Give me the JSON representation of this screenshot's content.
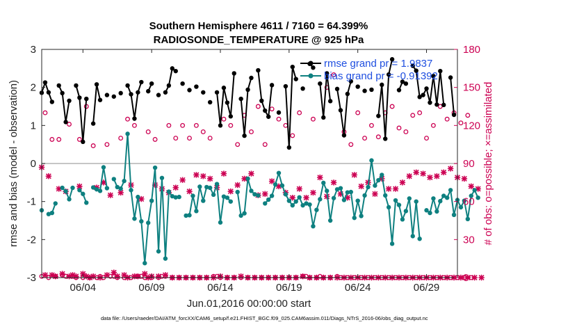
{
  "chart_data": {
    "type": "line",
    "title": "Southern Hemisphere 4611 / 7160 = 64.399%",
    "subtitle": "RADIOSONDE_TEMPERATURE @ 925 hPa",
    "xlabel": "Jun.01,2016 00:00:00 start",
    "ylabel": "rmse and bias (model - observation)",
    "ylabel_right": "# of obs: o=possible; ×=assimilated",
    "footnote": "data file: /Users/raeder/DAI/ATM_forcXX/CAM6_setup/f.e21.FHIST_BGC.f09_025.CAM6assim.011/Diags_NTrS_2016-06/obs_diag_output.nc",
    "xlim": [
      1.0,
      31.25
    ],
    "ylim": [
      -3,
      3
    ],
    "ylim_right": [
      0,
      180
    ],
    "x_ticks": [
      4,
      9,
      14,
      19,
      24,
      29
    ],
    "x_tick_labels": [
      "06/04",
      "06/09",
      "06/14",
      "06/19",
      "06/24",
      "06/29"
    ],
    "y_ticks": [
      -3,
      -2,
      -1,
      0,
      1,
      2,
      3
    ],
    "y_tick_labels": [
      "-3",
      "-2",
      "-1",
      "0",
      "1",
      "2",
      "3"
    ],
    "y_ticks_right": [
      0,
      30,
      60,
      90,
      120,
      150,
      180
    ],
    "y_tick_labels_right": [
      "0",
      "30",
      "60",
      "90",
      "120",
      "150",
      "180"
    ],
    "zero_line": 0,
    "legend": [
      "rmse grand pr = 1.9837",
      "bias grand pr = -0.91392"
    ],
    "colors": {
      "rmse": "#000000",
      "bias": "#0e8080",
      "obs": "#cc0052",
      "zero": "#b3b3b3",
      "legend_text": "#1f4fe0"
    },
    "series": [
      {
        "name": "rmse",
        "axis": "left",
        "start_day": 1.0,
        "step_days": 0.25,
        "values": [
          1.86,
          2.13,
          1.87,
          1.62,
          null,
          2.05,
          1.85,
          1.09,
          1.65,
          null,
          2.05,
          1.73,
          0.57,
          1.7,
          null,
          1.05,
          2.08,
          1.67,
          null,
          1.8,
          null,
          1.76,
          null,
          1.85,
          null,
          2.05,
          1.82,
          1.18,
          1.87,
          2.14,
          null,
          1.9,
          2.1,
          null,
          1.8,
          null,
          1.87,
          2.05,
          2.5,
          2.43,
          null,
          2.1,
          null,
          1.93,
          null,
          2.02,
          null,
          1.87,
          null,
          1.61,
          null,
          1.87,
          1.0,
          1.99,
          1.6,
          1.24,
          2.37,
          null,
          1.7,
          0.73,
          1.94,
          2.25,
          null,
          2.45,
          1.65,
          1.39,
          1.23,
          2.06,
          null,
          1.34,
          null,
          2.03,
          0.42,
          2.54,
          2.22,
          null,
          1.97,
          null,
          2.62,
          2.52,
          null,
          2.1,
          1.21,
          2.37,
          1.64,
          null,
          1.96,
          1.4,
          0.74,
          1.83,
          2.16,
          null,
          2.02,
          null,
          1.91,
          null,
          1.94,
          null,
          1.25,
          2.07,
          0.65,
          2.34,
          2.74,
          null,
          1.93,
          2.15,
          2.1,
          null,
          2.57,
          2.44,
          1.75,
          1.8,
          1.97,
          1.6,
          2.3,
          1.55,
          2.43,
          1.54,
          null,
          2.26,
          1.28
        ]
      },
      {
        "name": "bias",
        "axis": "left",
        "start_day": 1.0,
        "step_days": 0.25,
        "values": [
          -1.23,
          null,
          -1.33,
          -1.3,
          -1.05,
          null,
          -0.64,
          -0.73,
          -0.94,
          -0.64,
          null,
          -0.7,
          -0.8,
          -1.03,
          null,
          -0.63,
          -0.68,
          -0.72,
          -0.1,
          -0.65,
          null,
          -0.41,
          -0.62,
          -0.66,
          -0.46,
          0.78,
          -0.7,
          -1.45,
          -0.88,
          -1.52,
          -2.62,
          -1.56,
          -0.98,
          -0.11,
          -2.31,
          -0.38,
          -2.5,
          -0.74,
          -0.86,
          -0.89,
          -0.88,
          null,
          -1.37,
          -1.36,
          -0.85,
          -1.25,
          -0.61,
          -0.98,
          -0.62,
          -0.64,
          -0.82,
          -0.54,
          -1.55,
          -0.87,
          -0.9,
          -1.0,
          null,
          -0.75,
          -1.37,
          -1.31,
          -0.4,
          -0.72,
          -0.81,
          -0.84,
          null,
          -1.05,
          -0.95,
          -0.85,
          -0.55,
          -0.25,
          -0.58,
          -0.81,
          -0.98,
          -1.1,
          -1.0,
          -0.89,
          -1.1,
          -1.05,
          -1.08,
          -1.65,
          -1.22,
          -0.94,
          -0.51,
          -0.72,
          -1.5,
          -0.91,
          -0.68,
          -0.65,
          -0.96,
          -0.76,
          -0.75,
          -1.43,
          -0.98,
          -1.38,
          -0.84,
          -0.62,
          0.08,
          -0.58,
          -0.44,
          -0.3,
          -0.84,
          -1.15,
          -2.11,
          -0.97,
          -1.09,
          -1.47,
          -1.25,
          -0.92,
          -1.91,
          -1.0,
          -1.98,
          null,
          -1.23,
          -1.3,
          -0.92,
          -1.26,
          -0.99,
          -0.85,
          -0.9,
          -0.7,
          -1.35,
          -0.96,
          -1.15,
          -0.98,
          -1.46,
          -0.85,
          -0.7,
          -0.9
        ]
      },
      {
        "name": "obs possible",
        "axis": "right",
        "marker": "o",
        "start_day": 1.0,
        "step_days": 0.25,
        "values": [
          1,
          130,
          0,
          109,
          1,
          109,
          2,
          1,
          121,
          1,
          0,
          109,
          0,
          135,
          0,
          104,
          0,
          1,
          0,
          105,
          1,
          1,
          0,
          110,
          0,
          125,
          0,
          120,
          1,
          1,
          0,
          115,
          0,
          109,
          0,
          1,
          1,
          120,
          0,
          110,
          0,
          120,
          0,
          110,
          0,
          120,
          0,
          115,
          0,
          110,
          1,
          1,
          0,
          125,
          0,
          120,
          0,
          105,
          0,
          128,
          0,
          115,
          0,
          135,
          0,
          105,
          0,
          133,
          0,
          125,
          0,
          120,
          0,
          112,
          0,
          130,
          1,
          1,
          0,
          125,
          0,
          1,
          0,
          150,
          0,
          160,
          1,
          0,
          115,
          0,
          105,
          0,
          130,
          0,
          110,
          0,
          120,
          0,
          111,
          0,
          130,
          0,
          135,
          0,
          118,
          0,
          115,
          0,
          128,
          0,
          130,
          0,
          110,
          0,
          120,
          0,
          135,
          0,
          125,
          0,
          130,
          0,
          122,
          0,
          128,
          0
        ]
      },
      {
        "name": "obs assimilated",
        "axis": "right",
        "marker": "x",
        "start_day": 1.0,
        "step_days": 0.25,
        "values": [
          87,
          2,
          80,
          2,
          1,
          70,
          3,
          68,
          1,
          2,
          1,
          72,
          3,
          1,
          0,
          1,
          71,
          0,
          75,
          2,
          65,
          4,
          1,
          67,
          2,
          0,
          73,
          1,
          1,
          62,
          3,
          0,
          1,
          73,
          1,
          70,
          2,
          67,
          0,
          71,
          0,
          77,
          0,
          68,
          0,
          81,
          0,
          80,
          0,
          78,
          0,
          71,
          1,
          82,
          0,
          68,
          0,
          73,
          1,
          78,
          0,
          82,
          0,
          65,
          0,
          66,
          0,
          76,
          0,
          72,
          0,
          67,
          0,
          63,
          0,
          70,
          1,
          63,
          0,
          67,
          0,
          79,
          0,
          64,
          0,
          75,
          0,
          66,
          0,
          63,
          0,
          81,
          0,
          72,
          0,
          75,
          0,
          66,
          0,
          78,
          0,
          70,
          0,
          70,
          0,
          75,
          0,
          80,
          0,
          83,
          0,
          82,
          0,
          79,
          0,
          80,
          0,
          83,
          0,
          86,
          0,
          79,
          0,
          78,
          0,
          72,
          0,
          70,
          0
        ]
      }
    ]
  }
}
